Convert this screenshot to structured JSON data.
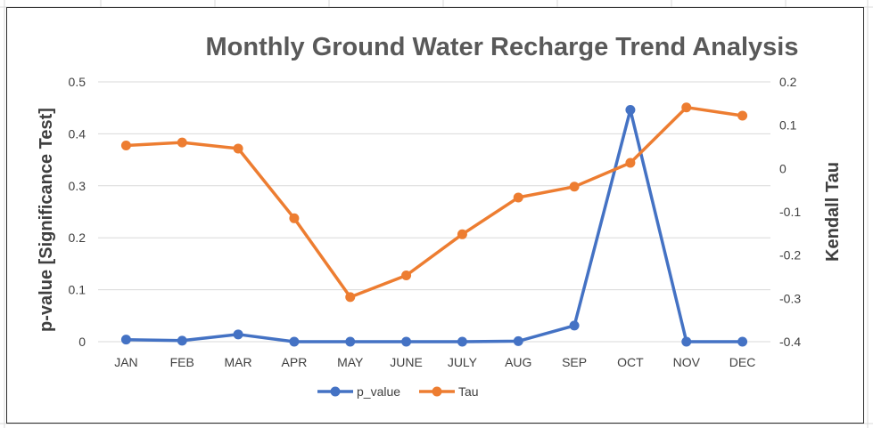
{
  "chart_data": {
    "type": "line",
    "title": "Monthly Ground Water Recharge Trend Analysis",
    "categories": [
      "JAN",
      "FEB",
      "MAR",
      "APR",
      "MAY",
      "JUNE",
      "JULY",
      "AUG",
      "SEP",
      "OCT",
      "NOV",
      "DEC"
    ],
    "y_left": {
      "label": "p-value [Significance Test]",
      "range": [
        0,
        0.5
      ],
      "ticks": [
        "0",
        "0.1",
        "0.2",
        "0.3",
        "0.4",
        "0.5"
      ]
    },
    "y_right": {
      "label": "Kendall Tau",
      "range": [
        -0.4,
        0.2
      ],
      "ticks": [
        "-0.4",
        "-0.3",
        "-0.2",
        "-0.1",
        "0",
        "0.1",
        "0.2"
      ]
    },
    "grid": true,
    "legend_position": "bottom",
    "series": [
      {
        "name": "p_value",
        "axis": "left",
        "color": "#4472c4",
        "values": [
          0.004,
          0.002,
          0.014,
          0.0,
          0.0,
          0.0,
          0.0,
          0.001,
          0.031,
          0.446,
          0.0,
          0.0
        ]
      },
      {
        "name": "Tau",
        "axis": "right",
        "color": "#ed7d31",
        "values": [
          0.053,
          0.06,
          0.046,
          -0.115,
          -0.297,
          -0.247,
          -0.152,
          -0.067,
          -0.042,
          0.013,
          0.141,
          0.122
        ]
      }
    ]
  }
}
